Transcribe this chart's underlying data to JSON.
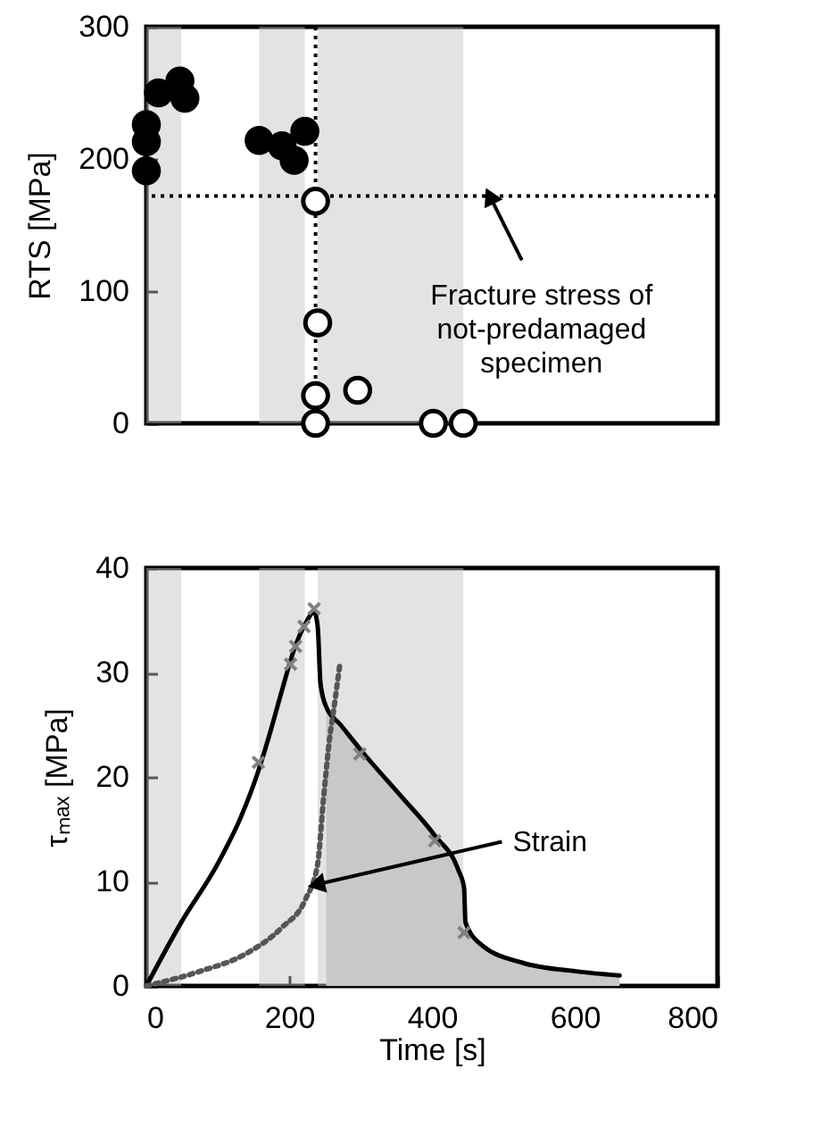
{
  "chart_data": [
    {
      "type": "scatter",
      "ylabel": "RTS [MPa]",
      "xlim": [
        0,
        800
      ],
      "xticks": [
        0,
        200,
        400,
        600,
        800
      ],
      "ylim": [
        0,
        300
      ],
      "yticks": [
        0,
        100,
        200,
        300
      ],
      "tick_labels": "y",
      "grid": false,
      "bands": [
        {
          "axis": "x",
          "from": 0,
          "to": 49,
          "color": "#c0c0c0"
        },
        {
          "axis": "x",
          "from": 158,
          "to": 222,
          "color": "#c0c0c0"
        },
        {
          "axis": "x",
          "from": 240,
          "to": 444,
          "color": "#c0c0c0"
        }
      ],
      "ref_lines": [
        {
          "axis": "y",
          "value": 172,
          "color": "#000000",
          "line_style": "dotted"
        },
        {
          "axis": "x",
          "value": 237,
          "color": "#000000",
          "line_style": "dotted"
        }
      ],
      "series": [
        {
          "marker": "circle",
          "color": "#000000",
          "x": [
            0,
            0,
            0,
            10,
            17,
            30,
            47,
            54,
            158,
            190,
            207,
            222
          ],
          "values": [
            191,
            213,
            226,
            null,
            250,
            null,
            259,
            246,
            214,
            210,
            199,
            221
          ]
        },
        {
          "marker": "circle",
          "color": "#ffffff",
          "x": [
            237,
            240,
            237,
            296,
            237,
            402,
            444
          ],
          "values": [
            168,
            76,
            21,
            25,
            0,
            0,
            0
          ]
        }
      ],
      "annotations": [
        {
          "text": "Fracture stress of\nnot-predamaged\nspecimen",
          "x": 481,
          "y": 172
        }
      ]
    },
    {
      "type": "line",
      "xlabel": "Time [s]",
      "ylabel": "τₘₐₓ [MPa]",
      "xlim": [
        0,
        800
      ],
      "xticks": [
        0,
        200,
        400,
        600,
        800
      ],
      "ylim": [
        0,
        40
      ],
      "yticks": [
        0,
        10,
        20,
        30,
        40
      ],
      "grid": false,
      "bands": [
        {
          "axis": "x",
          "from": 0,
          "to": 49,
          "color": "#c0c0c0"
        },
        {
          "axis": "x",
          "from": 158,
          "to": 222,
          "color": "#c0c0c0"
        },
        {
          "axis": "x",
          "from": 240,
          "to": 444,
          "color": "#c0c0c0"
        }
      ],
      "series": [
        {
          "type": "area",
          "color": "#c8c8c8",
          "x": [
            252,
            272,
            305,
            355,
            404,
            437,
            445,
            447,
            470,
            528,
            602,
            663
          ],
          "values": [
            26.7,
            25,
            22.2,
            18.3,
            14.4,
            11.1,
            9.4,
            6.1,
            3.9,
            2.2,
            1.4,
            1.0
          ]
        },
        {
          "line_style": "solid",
          "color": "#000000",
          "x": [
            0,
            49,
            100,
            132,
            157,
            174,
            190,
            207,
            223,
            235,
            240,
            244,
            252,
            272,
            305,
            355,
            404,
            437,
            445,
            447,
            470,
            528,
            602,
            663
          ],
          "values": [
            0,
            6.1,
            11.7,
            16.1,
            20.6,
            24.4,
            28.3,
            32.2,
            34.7,
            35.8,
            34.4,
            28.9,
            26.7,
            25,
            22.2,
            18.3,
            14.4,
            11.1,
            9.4,
            6.1,
            3.9,
            2.2,
            1.4,
            1.0
          ]
        },
        {
          "line_style": "dotted",
          "color": "#555555",
          "x": [
            0,
            75,
            140,
            190,
            223,
            240,
            248,
            256,
            264,
            271
          ],
          "values": [
            0,
            1.4,
            3.1,
            5.6,
            8.3,
            11.7,
            17.8,
            23.3,
            27.2,
            30.8
          ]
        },
        {
          "type": "scatter",
          "marker": "cross",
          "color": "#808080",
          "x": [
            157,
            202,
            209,
            221,
            235,
            299,
            404,
            445
          ],
          "values": [
            21.4,
            30.8,
            32.5,
            34.4,
            36.1,
            22.2,
            13.9,
            5.1
          ]
        }
      ],
      "annotations": [
        {
          "text": "Strain",
          "x": 238,
          "y": 9.7
        }
      ]
    }
  ]
}
